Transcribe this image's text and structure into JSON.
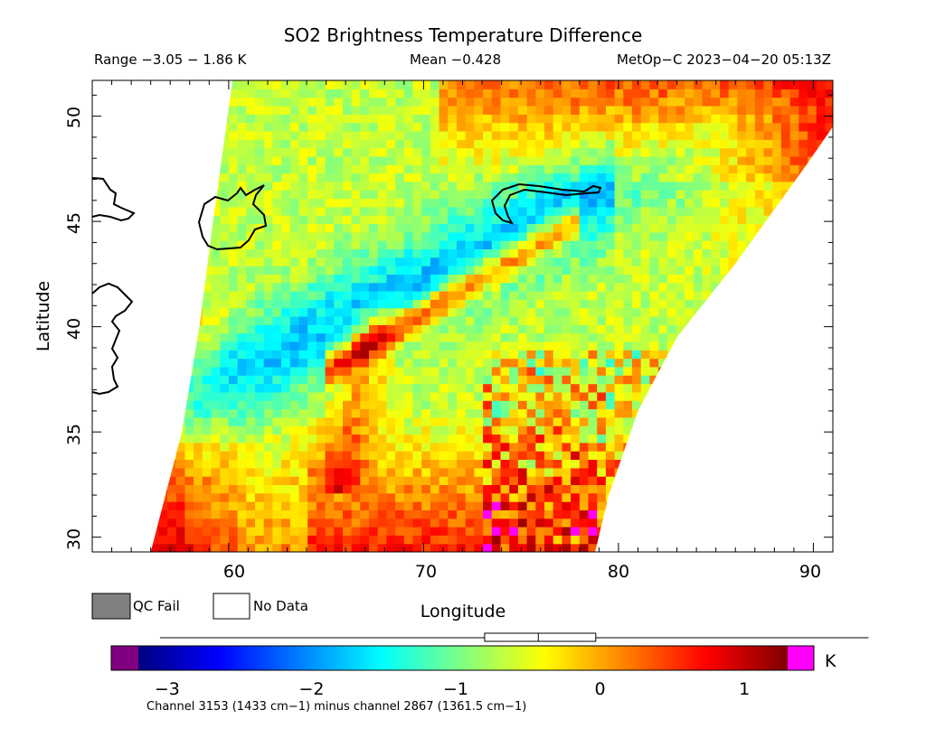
{
  "chart_data": {
    "type": "heatmap",
    "title": "SO2 Brightness Temperature Difference",
    "range_text": "Range −3.05 − 1.86 K",
    "mean_text": "Mean −0.428",
    "satellite_text": "MetOp−C 2023−04−20 05:13Z",
    "xlabel": "Longitude",
    "ylabel": "Latitude",
    "xlim": [
      53,
      91
    ],
    "ylim": [
      29.3,
      51.7
    ],
    "xticks": [
      "60",
      "70",
      "80",
      "90"
    ],
    "yticks": [
      "30",
      "35",
      "40",
      "45",
      "50"
    ],
    "legend": [
      {
        "label": "QC Fail",
        "color": "#808080"
      },
      {
        "label": "No Data",
        "color": "#ffffff"
      }
    ],
    "colorbar": {
      "min": -3.2,
      "max": 1.3,
      "unit": "K",
      "ticks": [
        "−3",
        "−2",
        "−1",
        "0",
        "1"
      ],
      "under_color": "#800080",
      "over_color": "#ff00ff",
      "stops": [
        "#00007f",
        "#0000ff",
        "#0080ff",
        "#00ffff",
        "#80ff80",
        "#ffff00",
        "#ff8000",
        "#ff0000",
        "#7f0000"
      ],
      "box_summary": {
        "min": -3.05,
        "q1": -0.8,
        "median": -0.428,
        "q3": -0.03,
        "max": 1.86
      }
    },
    "footnote": "Channel 3153 (1433 cm−1) minus channel 2867 (1361.5 cm−1)",
    "field_features": [
      {
        "feature": "background",
        "value": -0.65
      },
      {
        "feature": "low-value band",
        "value": -1.6
      },
      {
        "feature": "high-value ridge",
        "value": 0.8
      },
      {
        "feature": "southern high region",
        "value": 0.5
      }
    ]
  }
}
